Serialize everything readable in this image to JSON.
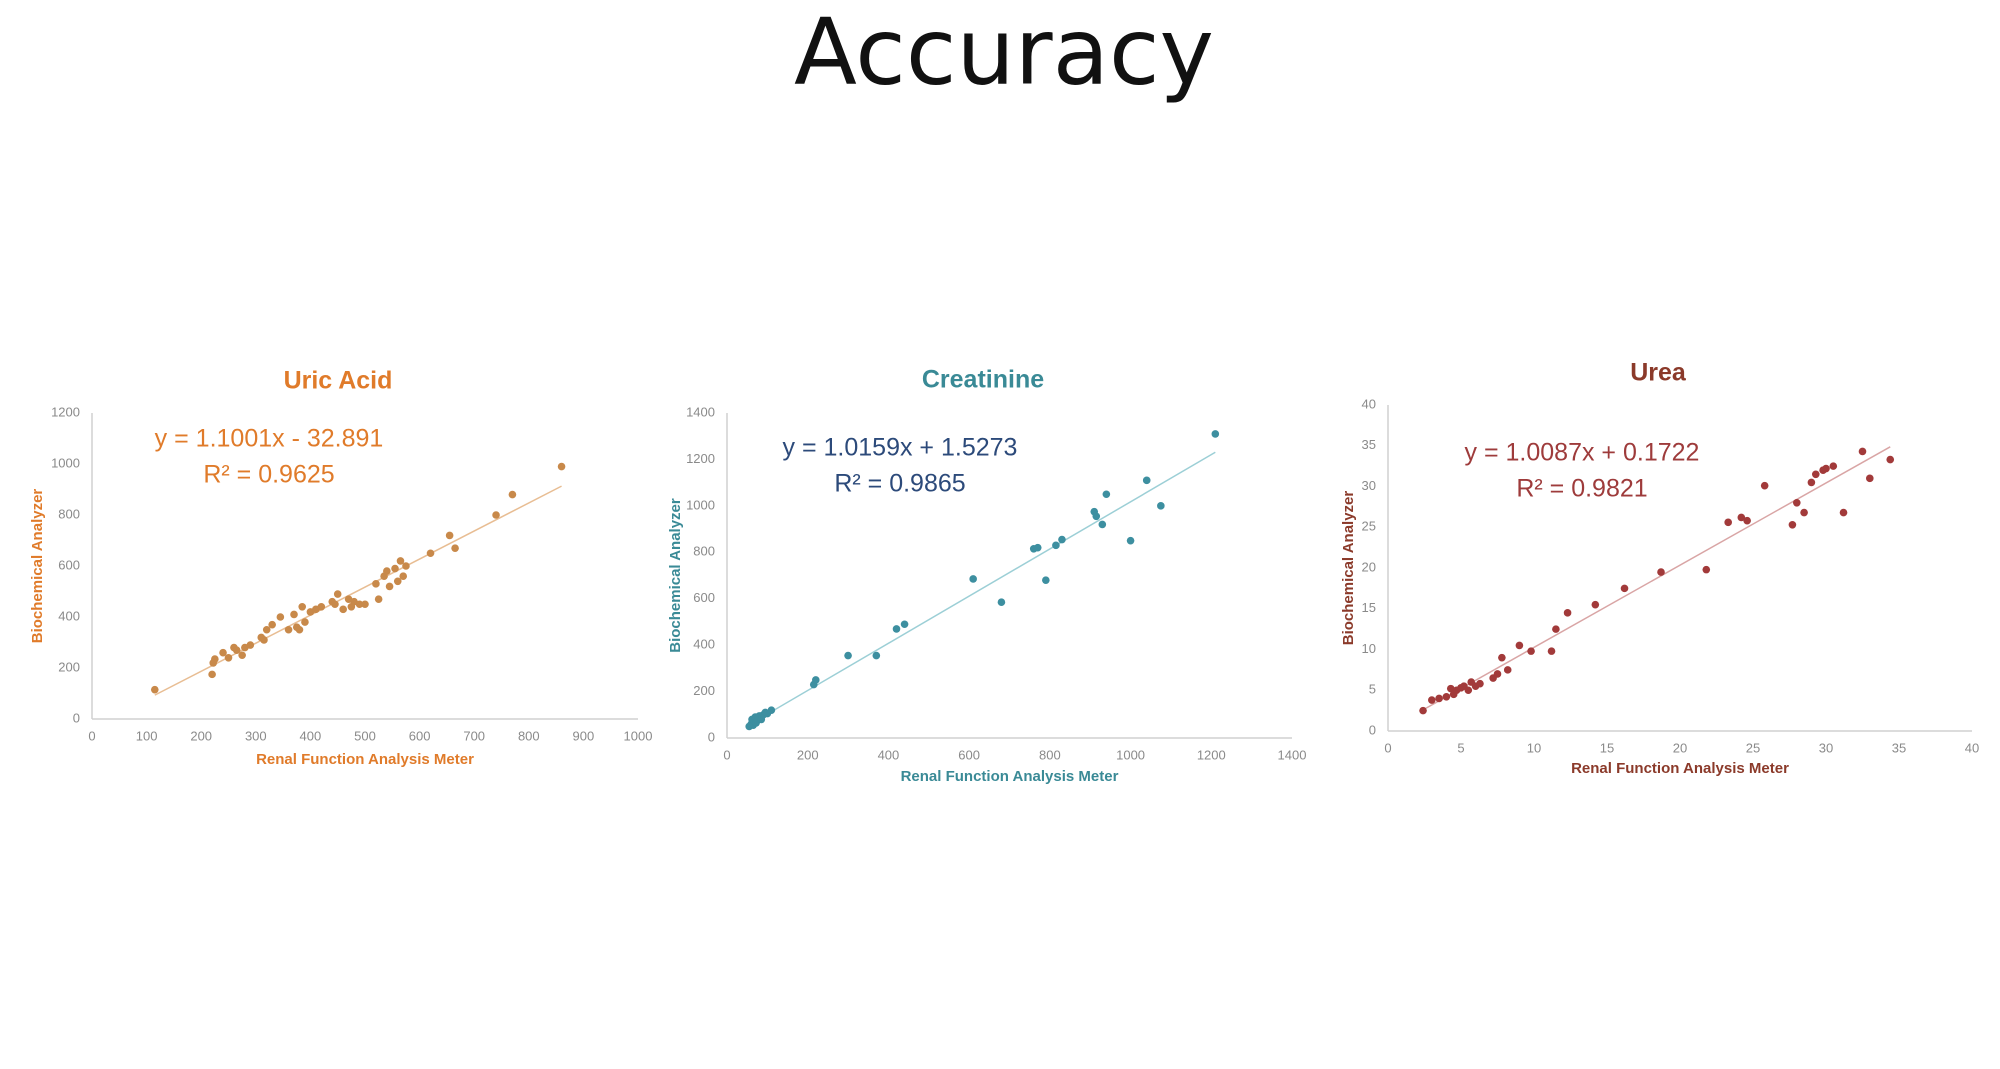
{
  "page_title": "Accuracy",
  "chart_data": [
    {
      "type": "scatter",
      "title": "Uric Acid",
      "xlabel": "Renal Function Analysis Meter",
      "ylabel": "Biochemical Analyzer",
      "annotations": [
        "y = 1.1001x - 32.891",
        "R² = 0.9625"
      ],
      "trendline": {
        "slope": 1.1001,
        "intercept": -32.891
      },
      "color": "#c8894a",
      "title_color": "#e07b2a",
      "label_color": "#e07b2a",
      "annotation_color": "#e07b2a",
      "trend_color": "#e8bd93",
      "xlim": [
        0,
        1000
      ],
      "ylim": [
        0,
        1200
      ],
      "xticks": [
        0,
        100,
        200,
        300,
        400,
        500,
        600,
        700,
        800,
        900,
        1000
      ],
      "yticks": [
        0,
        200,
        400,
        600,
        800,
        1000,
        1200
      ],
      "x": [
        115,
        220,
        222,
        225,
        240,
        250,
        260,
        265,
        275,
        280,
        290,
        310,
        315,
        320,
        330,
        345,
        360,
        370,
        375,
        380,
        385,
        390,
        400,
        410,
        420,
        440,
        445,
        450,
        460,
        470,
        475,
        480,
        490,
        500,
        520,
        525,
        535,
        540,
        545,
        555,
        560,
        565,
        570,
        575,
        620,
        655,
        665,
        740,
        770,
        860
      ],
      "y": [
        115,
        175,
        220,
        235,
        260,
        240,
        280,
        270,
        250,
        280,
        290,
        320,
        310,
        350,
        370,
        400,
        350,
        410,
        360,
        350,
        440,
        380,
        420,
        430,
        440,
        460,
        450,
        490,
        430,
        470,
        440,
        460,
        450,
        450,
        530,
        470,
        560,
        580,
        520,
        590,
        540,
        620,
        560,
        600,
        650,
        720,
        670,
        800,
        880,
        990
      ]
    },
    {
      "type": "scatter",
      "title": "Creatinine",
      "xlabel": "Renal Function Analysis Meter",
      "ylabel": "Biochemical Analyzer",
      "annotations": [
        "y = 1.0159x + 1.5273",
        "R² = 0.9865"
      ],
      "trendline": {
        "slope": 1.0159,
        "intercept": 1.5273
      },
      "color": "#3d8fa0",
      "title_color": "#3a8a96",
      "label_color": "#3a8a96",
      "annotation_color": "#2c4a7a",
      "trend_color": "#9ccfd6",
      "xlim": [
        0,
        1400
      ],
      "ylim": [
        0,
        1400
      ],
      "xticks": [
        0,
        200,
        400,
        600,
        800,
        1000,
        1200,
        1400
      ],
      "yticks": [
        0,
        200,
        400,
        600,
        800,
        1000,
        1200,
        1400
      ],
      "x": [
        55,
        60,
        62,
        65,
        68,
        70,
        72,
        75,
        78,
        80,
        85,
        90,
        95,
        100,
        110,
        215,
        220,
        300,
        370,
        420,
        440,
        610,
        680,
        760,
        770,
        790,
        815,
        830,
        910,
        915,
        930,
        940,
        1000,
        1040,
        1075,
        1210
      ],
      "y": [
        50,
        60,
        80,
        55,
        70,
        90,
        65,
        75,
        85,
        95,
        80,
        100,
        110,
        105,
        120,
        230,
        250,
        355,
        355,
        470,
        490,
        685,
        585,
        815,
        820,
        680,
        830,
        855,
        975,
        955,
        920,
        1050,
        850,
        1110,
        1000,
        1310
      ]
    },
    {
      "type": "scatter",
      "title": "Urea",
      "xlabel": "Renal Function Analysis Meter",
      "ylabel": "Biochemical Analyzer",
      "annotations": [
        "y = 1.0087x + 0.1722",
        "R² = 0.9821"
      ],
      "trendline": {
        "slope": 1.0087,
        "intercept": 0.1722
      },
      "color": "#a23a3a",
      "title_color": "#8b3a2a",
      "label_color": "#8b3a2a",
      "annotation_color": "#9e3b3b",
      "trend_color": "#d9a5a5",
      "xlim": [
        0,
        40
      ],
      "ylim": [
        0,
        40
      ],
      "xticks": [
        0,
        5,
        10,
        15,
        20,
        25,
        30,
        35,
        40
      ],
      "yticks": [
        0,
        5,
        10,
        15,
        20,
        25,
        30,
        35,
        40
      ],
      "x": [
        2.4,
        3.0,
        3.5,
        4.0,
        4.3,
        4.5,
        4.7,
        5.0,
        5.2,
        5.5,
        5.7,
        6.0,
        6.3,
        7.2,
        7.5,
        7.8,
        8.2,
        9.0,
        9.8,
        11.2,
        11.5,
        12.3,
        14.2,
        16.2,
        18.7,
        21.8,
        23.3,
        24.2,
        24.6,
        25.8,
        27.7,
        28.0,
        28.5,
        29.0,
        29.3,
        29.8,
        30.0,
        30.5,
        31.2,
        32.5,
        33.0,
        34.4
      ],
      "y": [
        2.5,
        3.8,
        4.0,
        4.2,
        5.2,
        4.5,
        5.0,
        5.3,
        5.5,
        5.0,
        6.0,
        5.5,
        5.8,
        6.5,
        7.0,
        9.0,
        7.5,
        10.5,
        9.8,
        9.8,
        12.5,
        14.5,
        15.5,
        17.5,
        19.5,
        19.8,
        25.6,
        26.2,
        25.8,
        30.1,
        25.3,
        28.0,
        26.8,
        30.5,
        31.5,
        32.0,
        32.2,
        32.5,
        26.8,
        34.3,
        31.0,
        33.3
      ]
    }
  ]
}
